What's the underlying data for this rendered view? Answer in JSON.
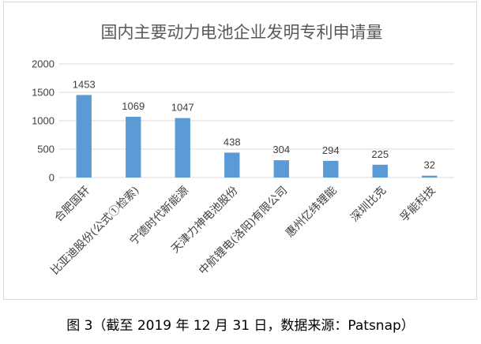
{
  "caption": "图 3（截至 2019 年 12 月 31 日，数据来源：Patsnap）",
  "chart_data": {
    "type": "bar",
    "title": "国内主要动力电池企业发明专利申请量",
    "categories": [
      "合肥国轩",
      "比亚迪股份(公式①检索)",
      "宁德时代新能源",
      "天津力神电池股份",
      "中航锂电(洛阳)有限公司",
      "惠州亿纬锂能",
      "深圳比克",
      "孚能科技"
    ],
    "values": [
      1453,
      1069,
      1047,
      438,
      304,
      294,
      225,
      32
    ],
    "ylim": [
      0,
      2000
    ],
    "yticks": [
      0,
      500,
      1000,
      1500,
      2000
    ],
    "grid": true,
    "legend": "none",
    "bar_color": "#5b9bd5",
    "grid_color": "#d9d9d9"
  }
}
